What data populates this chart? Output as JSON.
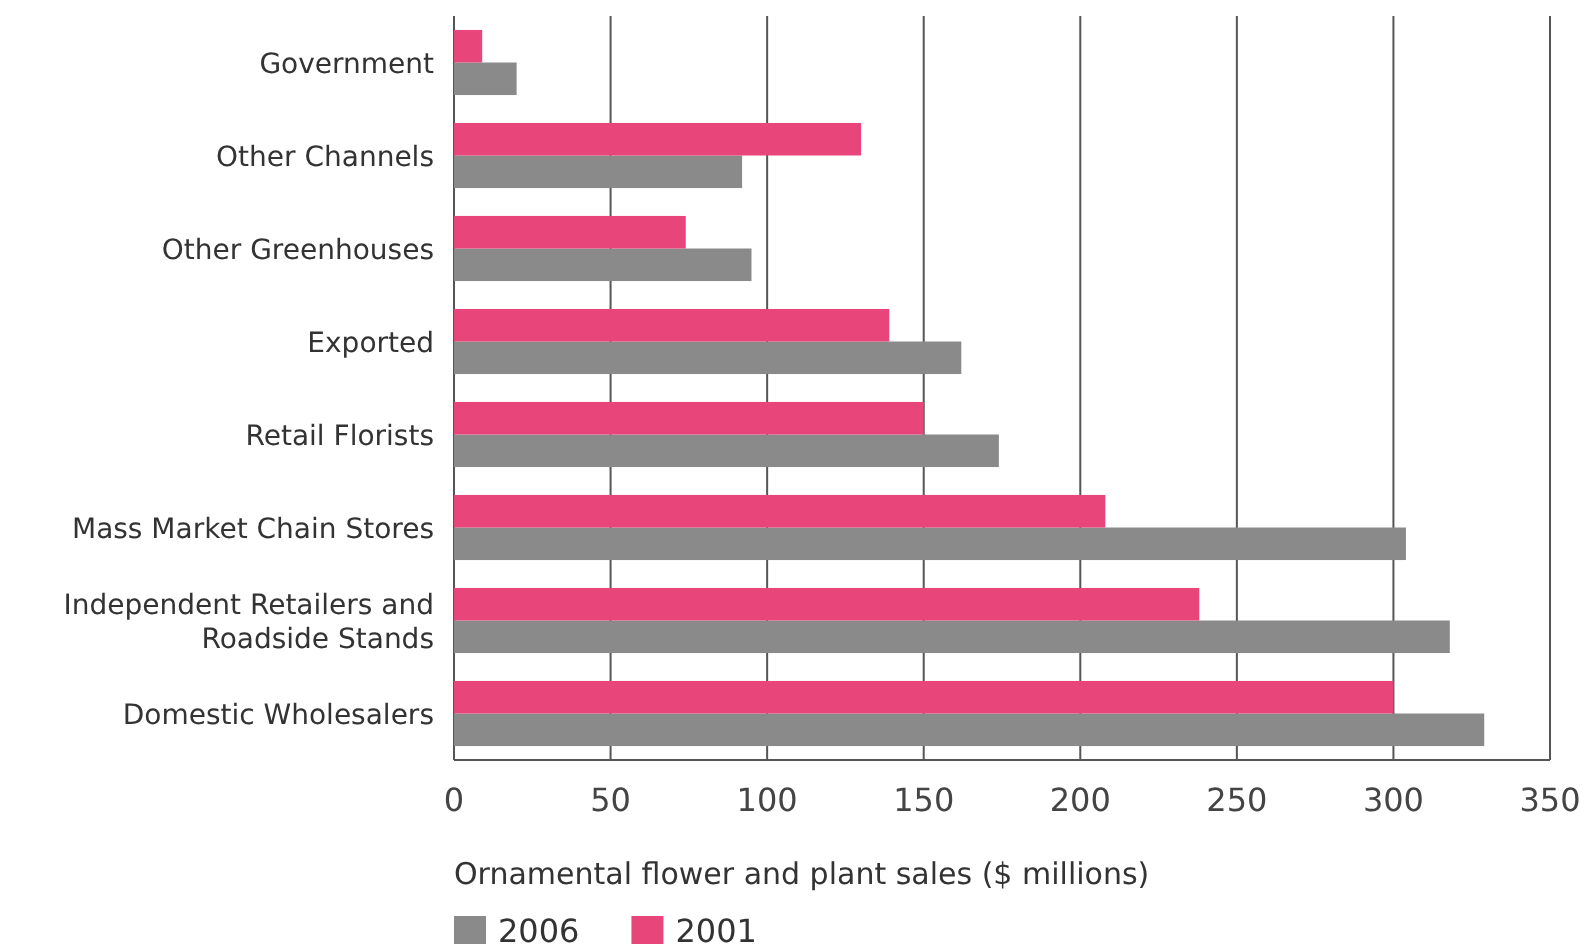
{
  "chart_data": {
    "type": "bar",
    "orientation": "horizontal",
    "xlabel": "Ornamental flower and plant sales ($ millions)",
    "categories": [
      "Government",
      "Other Channels",
      "Other Greenhouses",
      "Exported",
      "Retail Florists",
      "Mass Market Chain Stores",
      "Independent Retailers and Roadside Stands",
      "Domestic Wholesalers"
    ],
    "series": [
      {
        "name": "2006",
        "color": "#8a8a8a",
        "values": [
          20,
          92,
          95,
          162,
          174,
          304,
          318,
          329
        ]
      },
      {
        "name": "2001",
        "color": "#e8457a",
        "values": [
          9,
          130,
          74,
          139,
          150,
          208,
          238,
          300
        ]
      }
    ],
    "xlim": [
      0,
      350
    ],
    "xticks": [
      0,
      50,
      100,
      150,
      200,
      250,
      300,
      350
    ],
    "grid": "x",
    "legend": "bottom"
  }
}
